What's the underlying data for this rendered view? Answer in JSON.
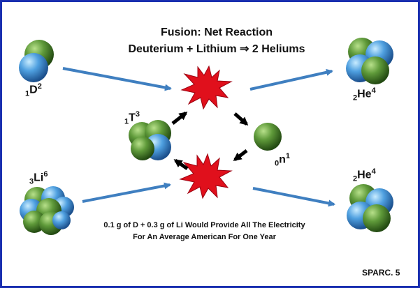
{
  "title": {
    "line1": "Fusion: Net Reaction",
    "line2": "Deuterium + Lithium ⇒ 2 Heliums"
  },
  "species": {
    "deuterium": {
      "pre": "1",
      "symbol": "D",
      "sup": "2"
    },
    "tritium": {
      "pre": "1",
      "symbol": "T",
      "sup": "3"
    },
    "neutron": {
      "pre": "0",
      "symbol": "n",
      "sup": "1"
    },
    "lithium": {
      "pre": "3",
      "symbol": "Li",
      "sup": "6"
    },
    "helium_top": {
      "pre": "2",
      "symbol": "He",
      "sup": "4"
    },
    "helium_bottom": {
      "pre": "2",
      "symbol": "He",
      "sup": "4"
    }
  },
  "note": {
    "line1": "0.1 g of D + 0.3 g of Li Would Provide All The Electricity",
    "line2": "For An Average American For One Year"
  },
  "footer": "SPARC. 5",
  "colors": {
    "frame": "#1a2fb0",
    "arrow_blue": "#3f7fc0",
    "arrow_black": "#000000",
    "burst": "#e0101c",
    "proton_green": "#5f9a3a",
    "neutron_blue": "#4fa0e0"
  },
  "icons": {
    "burst": "explosion-icon",
    "nucleus": "nucleus-sphere-icon"
  }
}
